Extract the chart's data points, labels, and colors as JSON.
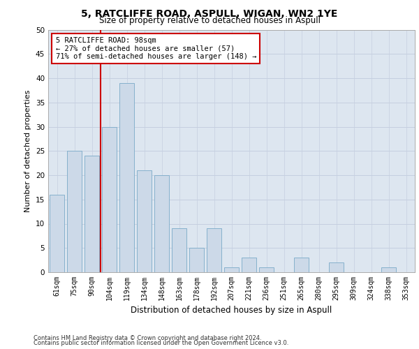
{
  "title": "5, RATCLIFFE ROAD, ASPULL, WIGAN, WN2 1YE",
  "subtitle": "Size of property relative to detached houses in Aspull",
  "xlabel": "Distribution of detached houses by size in Aspull",
  "ylabel": "Number of detached properties",
  "categories": [
    "61sqm",
    "75sqm",
    "90sqm",
    "104sqm",
    "119sqm",
    "134sqm",
    "148sqm",
    "163sqm",
    "178sqm",
    "192sqm",
    "207sqm",
    "221sqm",
    "236sqm",
    "251sqm",
    "265sqm",
    "280sqm",
    "295sqm",
    "309sqm",
    "324sqm",
    "338sqm",
    "353sqm"
  ],
  "values": [
    16,
    25,
    24,
    30,
    39,
    21,
    20,
    9,
    5,
    9,
    1,
    3,
    1,
    0,
    3,
    0,
    2,
    0,
    0,
    1,
    0
  ],
  "bar_color": "#ccd9e8",
  "bar_edge_color": "#7aaac8",
  "grid_color": "#c5cfe0",
  "background_color": "#dde6f0",
  "vline_color": "#cc0000",
  "annotation_text": "5 RATCLIFFE ROAD: 98sqm\n← 27% of detached houses are smaller (57)\n71% of semi-detached houses are larger (148) →",
  "annotation_box_color": "#ffffff",
  "annotation_box_edge_color": "#cc0000",
  "ylim": [
    0,
    50
  ],
  "yticks": [
    0,
    5,
    10,
    15,
    20,
    25,
    30,
    35,
    40,
    45,
    50
  ],
  "footer_line1": "Contains HM Land Registry data © Crown copyright and database right 2024.",
  "footer_line2": "Contains public sector information licensed under the Open Government Licence v3.0."
}
